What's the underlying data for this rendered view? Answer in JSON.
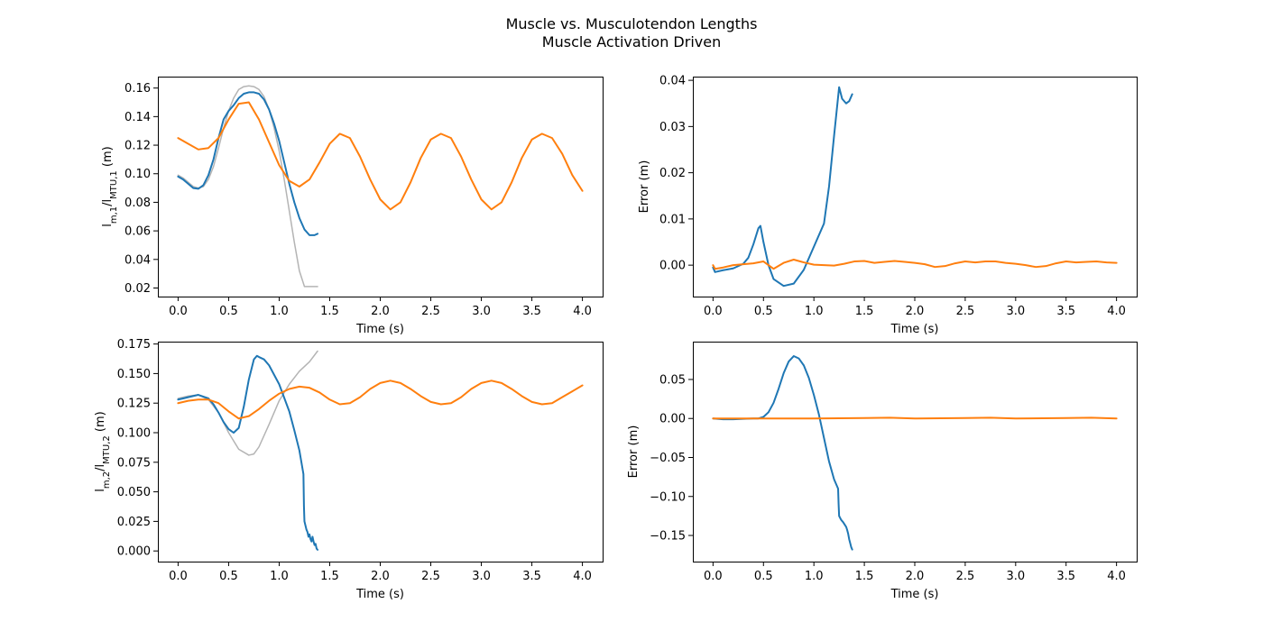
{
  "figure": {
    "title_line1": "Muscle vs. Musculotendon Lengths",
    "title_line2": "Muscle Activation Driven"
  },
  "colors": {
    "blue": "#1f77b4",
    "orange": "#ff7f0e",
    "gray": "#b4b4b4"
  },
  "chart_data": [
    {
      "type": "line",
      "xlabel": "Time (s)",
      "ylabel": "l_{m,1}/l_{MTU,1} (m)",
      "xlim": [
        -0.2,
        4.2
      ],
      "ylim": [
        0.014,
        0.168
      ],
      "xticks": [
        "0.0",
        "0.5",
        "1.0",
        "1.5",
        "2.0",
        "2.5",
        "3.0",
        "3.5",
        "4.0"
      ],
      "yticks": [
        "0.02",
        "0.04",
        "0.06",
        "0.08",
        "0.10",
        "0.12",
        "0.14",
        "0.16"
      ],
      "series": [
        {
          "color": "gray",
          "width": 1.5,
          "x": [
            0,
            0.05,
            0.1,
            0.15,
            0.2,
            0.25,
            0.3,
            0.35,
            0.4,
            0.45,
            0.5,
            0.55,
            0.6,
            0.65,
            0.7,
            0.75,
            0.8,
            0.85,
            0.9,
            0.95,
            1.0,
            1.05,
            1.1,
            1.15,
            1.2,
            1.25,
            1.3,
            1.38
          ],
          "y": [
            0.099,
            0.097,
            0.094,
            0.091,
            0.09,
            0.091,
            0.096,
            0.105,
            0.118,
            0.132,
            0.144,
            0.153,
            0.159,
            0.161,
            0.1615,
            0.161,
            0.159,
            0.154,
            0.145,
            0.132,
            0.116,
            0.096,
            0.074,
            0.052,
            0.032,
            0.021,
            0.021,
            0.021
          ]
        },
        {
          "color": "blue",
          "width": 2,
          "x": [
            0,
            0.05,
            0.1,
            0.15,
            0.2,
            0.25,
            0.3,
            0.35,
            0.4,
            0.45,
            0.5,
            0.55,
            0.6,
            0.65,
            0.7,
            0.75,
            0.8,
            0.85,
            0.9,
            0.95,
            1.0,
            1.05,
            1.1,
            1.15,
            1.2,
            1.25,
            1.3,
            1.35,
            1.38
          ],
          "y": [
            0.098,
            0.096,
            0.093,
            0.09,
            0.0895,
            0.092,
            0.099,
            0.11,
            0.125,
            0.138,
            0.144,
            0.148,
            0.153,
            0.156,
            0.157,
            0.157,
            0.156,
            0.152,
            0.145,
            0.135,
            0.123,
            0.108,
            0.093,
            0.08,
            0.069,
            0.061,
            0.057,
            0.057,
            0.058
          ]
        },
        {
          "color": "orange",
          "width": 2,
          "x": [
            0,
            0.1,
            0.2,
            0.3,
            0.4,
            0.5,
            0.6,
            0.7,
            0.8,
            0.9,
            1.0,
            1.1,
            1.2,
            1.3,
            1.4,
            1.5,
            1.6,
            1.7,
            1.8,
            1.9,
            2.0,
            2.1,
            2.2,
            2.3,
            2.4,
            2.5,
            2.6,
            2.7,
            2.8,
            2.9,
            3.0,
            3.1,
            3.2,
            3.3,
            3.4,
            3.5,
            3.6,
            3.7,
            3.8,
            3.9,
            4.0
          ],
          "y": [
            0.125,
            0.121,
            0.117,
            0.118,
            0.125,
            0.138,
            0.149,
            0.15,
            0.138,
            0.122,
            0.106,
            0.095,
            0.091,
            0.096,
            0.108,
            0.121,
            0.128,
            0.125,
            0.112,
            0.096,
            0.082,
            0.075,
            0.08,
            0.094,
            0.111,
            0.124,
            0.128,
            0.125,
            0.112,
            0.096,
            0.082,
            0.075,
            0.08,
            0.094,
            0.111,
            0.124,
            0.128,
            0.125,
            0.114,
            0.099,
            0.088
          ]
        }
      ]
    },
    {
      "type": "line",
      "xlabel": "Time (s)",
      "ylabel": "Error (m)",
      "xlim": [
        -0.2,
        4.2
      ],
      "ylim": [
        -0.0068,
        0.0408
      ],
      "xticks": [
        "0.0",
        "0.5",
        "1.0",
        "1.5",
        "2.0",
        "2.5",
        "3.0",
        "3.5",
        "4.0"
      ],
      "yticks": [
        "0.00",
        "0.01",
        "0.02",
        "0.03",
        "0.04"
      ],
      "series": [
        {
          "color": "blue",
          "width": 2,
          "x": [
            0,
            0.02,
            0.1,
            0.2,
            0.3,
            0.35,
            0.4,
            0.45,
            0.47,
            0.5,
            0.55,
            0.6,
            0.7,
            0.8,
            0.9,
            1.0,
            1.1,
            1.15,
            1.2,
            1.25,
            1.28,
            1.32,
            1.35,
            1.38
          ],
          "y": [
            -0.0005,
            -0.0015,
            -0.0011,
            -0.0007,
            0.0003,
            0.0016,
            0.0045,
            0.008,
            0.0085,
            0.005,
            0.0,
            -0.003,
            -0.0045,
            -0.004,
            -0.001,
            0.004,
            0.009,
            0.017,
            0.028,
            0.0385,
            0.036,
            0.035,
            0.0355,
            0.037
          ]
        },
        {
          "color": "orange",
          "width": 2,
          "x": [
            0,
            0.02,
            0.1,
            0.2,
            0.3,
            0.4,
            0.5,
            0.6,
            0.7,
            0.8,
            0.9,
            1.0,
            1.1,
            1.2,
            1.3,
            1.4,
            1.5,
            1.6,
            1.7,
            1.8,
            1.9,
            2.0,
            2.1,
            2.2,
            2.3,
            2.4,
            2.5,
            2.6,
            2.7,
            2.8,
            2.9,
            3.0,
            3.1,
            3.2,
            3.3,
            3.4,
            3.5,
            3.6,
            3.7,
            3.8,
            3.9,
            4.0
          ],
          "y": [
            0.0,
            -0.0008,
            -0.0005,
            0.0,
            0.0002,
            0.0004,
            0.0008,
            -0.0008,
            0.0005,
            0.0012,
            0.0006,
            0.0001,
            0.0,
            -0.0001,
            0.0003,
            0.0008,
            0.0009,
            0.0005,
            0.0007,
            0.0009,
            0.0007,
            0.0005,
            0.0002,
            -0.0004,
            -0.0002,
            0.0004,
            0.0008,
            0.0006,
            0.0008,
            0.0008,
            0.0005,
            0.0003,
            0.0,
            -0.0004,
            -0.0002,
            0.0004,
            0.0008,
            0.0006,
            0.0007,
            0.0008,
            0.0006,
            0.0005
          ]
        }
      ]
    },
    {
      "type": "line",
      "xlabel": "Time (s)",
      "ylabel": "l_{m,2}/l_{MTU,2} (m)",
      "xlim": [
        -0.2,
        4.2
      ],
      "ylim": [
        -0.009,
        0.177
      ],
      "xticks": [
        "0.0",
        "0.5",
        "1.0",
        "1.5",
        "2.0",
        "2.5",
        "3.0",
        "3.5",
        "4.0"
      ],
      "yticks": [
        "0.000",
        "0.025",
        "0.050",
        "0.075",
        "0.100",
        "0.125",
        "0.150",
        "0.175"
      ],
      "series": [
        {
          "color": "gray",
          "width": 1.5,
          "x": [
            0,
            0.1,
            0.2,
            0.3,
            0.4,
            0.5,
            0.6,
            0.7,
            0.75,
            0.8,
            0.9,
            1.0,
            1.1,
            1.2,
            1.3,
            1.38
          ],
          "y": [
            0.129,
            0.131,
            0.132,
            0.128,
            0.117,
            0.1,
            0.086,
            0.081,
            0.082,
            0.088,
            0.107,
            0.127,
            0.141,
            0.152,
            0.16,
            0.169
          ]
        },
        {
          "color": "blue",
          "width": 2,
          "x": [
            0,
            0.05,
            0.1,
            0.2,
            0.3,
            0.35,
            0.4,
            0.45,
            0.5,
            0.55,
            0.6,
            0.65,
            0.7,
            0.75,
            0.78,
            0.8,
            0.85,
            0.9,
            1.0,
            1.1,
            1.15,
            1.2,
            1.24,
            1.245,
            1.25,
            1.27,
            1.28,
            1.29,
            1.3,
            1.31,
            1.32,
            1.33,
            1.34,
            1.35,
            1.36,
            1.37,
            1.38
          ],
          "y": [
            0.128,
            0.129,
            0.13,
            0.132,
            0.129,
            0.124,
            0.117,
            0.109,
            0.103,
            0.1,
            0.104,
            0.122,
            0.145,
            0.162,
            0.165,
            0.164,
            0.162,
            0.157,
            0.141,
            0.118,
            0.102,
            0.085,
            0.065,
            0.038,
            0.025,
            0.018,
            0.016,
            0.012,
            0.014,
            0.01,
            0.008,
            0.012,
            0.008,
            0.005,
            0.006,
            0.002,
            0.001
          ]
        },
        {
          "color": "orange",
          "width": 2,
          "x": [
            0,
            0.1,
            0.2,
            0.3,
            0.4,
            0.5,
            0.6,
            0.7,
            0.8,
            0.9,
            1.0,
            1.1,
            1.2,
            1.3,
            1.4,
            1.5,
            1.6,
            1.7,
            1.8,
            1.9,
            2.0,
            2.1,
            2.2,
            2.3,
            2.4,
            2.5,
            2.6,
            2.7,
            2.8,
            2.9,
            3.0,
            3.1,
            3.2,
            3.3,
            3.4,
            3.5,
            3.6,
            3.7,
            3.8,
            3.9,
            4.0
          ],
          "y": [
            0.125,
            0.127,
            0.128,
            0.128,
            0.125,
            0.118,
            0.112,
            0.114,
            0.12,
            0.127,
            0.133,
            0.137,
            0.139,
            0.138,
            0.134,
            0.128,
            0.124,
            0.125,
            0.13,
            0.137,
            0.142,
            0.144,
            0.142,
            0.137,
            0.131,
            0.126,
            0.124,
            0.125,
            0.13,
            0.137,
            0.142,
            0.144,
            0.142,
            0.137,
            0.131,
            0.126,
            0.124,
            0.125,
            0.13,
            0.135,
            0.14
          ]
        }
      ]
    },
    {
      "type": "line",
      "xlabel": "Time (s)",
      "ylabel": "Error (m)",
      "xlim": [
        -0.2,
        4.2
      ],
      "ylim": [
        -0.1835,
        0.0985
      ],
      "xticks": [
        "0.0",
        "0.5",
        "1.0",
        "1.5",
        "2.0",
        "2.5",
        "3.0",
        "3.5",
        "4.0"
      ],
      "yticks": [
        "-0.15",
        "-0.10",
        "-0.05",
        "0.00",
        "0.05"
      ],
      "series": [
        {
          "color": "blue",
          "width": 2,
          "x": [
            0,
            0.1,
            0.2,
            0.3,
            0.4,
            0.45,
            0.5,
            0.55,
            0.6,
            0.65,
            0.7,
            0.75,
            0.8,
            0.85,
            0.9,
            0.95,
            1.0,
            1.05,
            1.1,
            1.15,
            1.2,
            1.24,
            1.245,
            1.25,
            1.27,
            1.29,
            1.3,
            1.31,
            1.32,
            1.33,
            1.34,
            1.35,
            1.36,
            1.37,
            1.38
          ],
          "y": [
            0.0,
            -0.001,
            -0.001,
            -0.0005,
            0.0,
            0.0,
            0.002,
            0.008,
            0.02,
            0.038,
            0.058,
            0.073,
            0.08,
            0.077,
            0.068,
            0.052,
            0.03,
            0.005,
            -0.025,
            -0.055,
            -0.078,
            -0.09,
            -0.11,
            -0.125,
            -0.13,
            -0.133,
            -0.135,
            -0.137,
            -0.139,
            -0.143,
            -0.148,
            -0.155,
            -0.16,
            -0.165,
            -0.168
          ]
        },
        {
          "color": "orange",
          "width": 2,
          "x": [
            0,
            0.5,
            1.0,
            1.5,
            1.75,
            2.0,
            2.5,
            2.75,
            3.0,
            3.5,
            3.75,
            4.0
          ],
          "y": [
            0.0,
            0.0,
            0.0,
            0.0005,
            0.001,
            0.0,
            0.0005,
            0.001,
            0.0,
            0.0005,
            0.001,
            0.0
          ]
        }
      ]
    }
  ]
}
